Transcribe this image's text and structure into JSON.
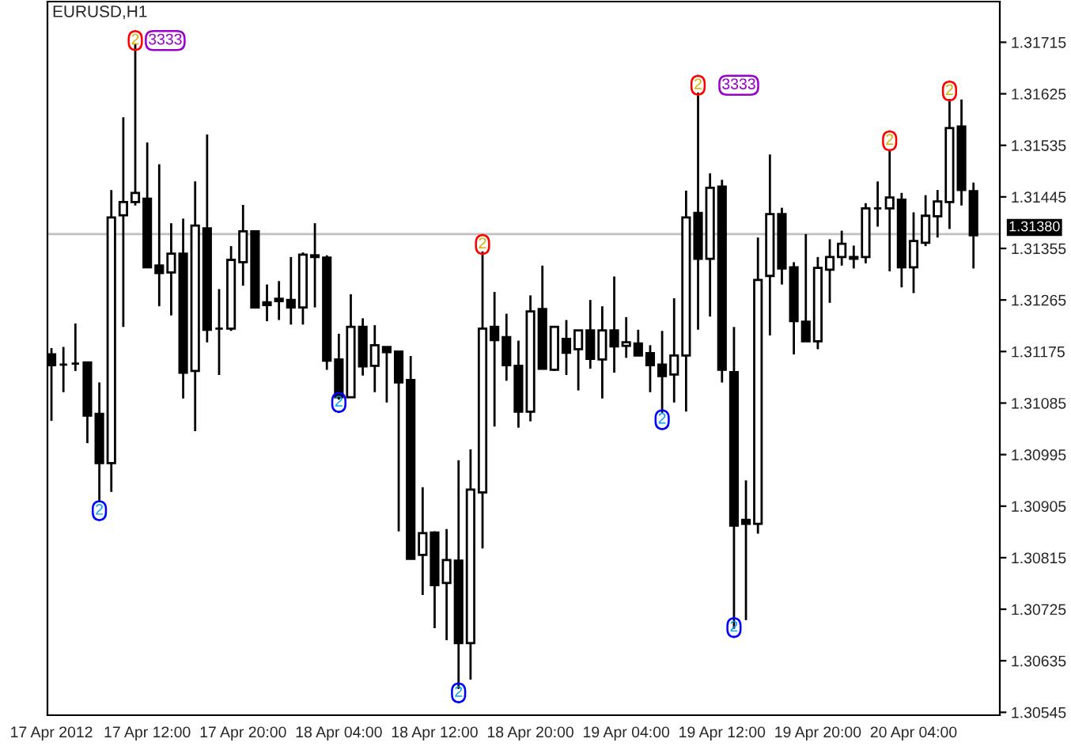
{
  "chart_data": {
    "type": "candlestick",
    "title": "EURUSD,H1",
    "x": [
      "2012-04-17T04:00",
      "2012-04-17T05:00",
      "2012-04-17T06:00",
      "2012-04-17T07:00",
      "2012-04-17T08:00",
      "2012-04-17T09:00",
      "2012-04-17T10:00",
      "2012-04-17T11:00",
      "2012-04-17T12:00",
      "2012-04-17T13:00",
      "2012-04-17T14:00",
      "2012-04-17T15:00",
      "2012-04-17T16:00",
      "2012-04-17T17:00",
      "2012-04-17T18:00",
      "2012-04-17T19:00",
      "2012-04-17T20:00",
      "2012-04-17T21:00",
      "2012-04-17T22:00",
      "2012-04-17T23:00",
      "2012-04-18T00:00",
      "2012-04-18T01:00",
      "2012-04-18T02:00",
      "2012-04-18T03:00",
      "2012-04-18T04:00",
      "2012-04-18T05:00",
      "2012-04-18T06:00",
      "2012-04-18T07:00",
      "2012-04-18T08:00",
      "2012-04-18T09:00",
      "2012-04-18T10:00",
      "2012-04-18T11:00",
      "2012-04-18T12:00",
      "2012-04-18T13:00",
      "2012-04-18T14:00",
      "2012-04-18T15:00",
      "2012-04-18T16:00",
      "2012-04-18T17:00",
      "2012-04-18T18:00",
      "2012-04-18T19:00",
      "2012-04-18T20:00",
      "2012-04-18T21:00",
      "2012-04-18T22:00",
      "2012-04-18T23:00",
      "2012-04-19T00:00",
      "2012-04-19T01:00",
      "2012-04-19T02:00",
      "2012-04-19T03:00",
      "2012-04-19T04:00",
      "2012-04-19T05:00",
      "2012-04-19T06:00",
      "2012-04-19T07:00",
      "2012-04-19T08:00",
      "2012-04-19T09:00",
      "2012-04-19T10:00",
      "2012-04-19T11:00",
      "2012-04-19T12:00",
      "2012-04-19T13:00",
      "2012-04-19T14:00",
      "2012-04-19T15:00",
      "2012-04-19T16:00",
      "2012-04-19T17:00",
      "2012-04-19T18:00",
      "2012-04-19T19:00",
      "2012-04-19T20:00",
      "2012-04-19T21:00",
      "2012-04-19T22:00",
      "2012-04-19T23:00",
      "2012-04-20T00:00",
      "2012-04-20T01:00",
      "2012-04-20T02:00",
      "2012-04-20T03:00",
      "2012-04-20T04:00",
      "2012-04-20T05:00",
      "2012-04-20T06:00",
      "2012-04-20T07:00",
      "2012-04-20T08:00",
      "2012-04-20T09:00"
    ],
    "ohlc": [
      [
        1.3117,
        1.31181,
        1.31054,
        1.31151
      ],
      [
        1.31152,
        1.31183,
        1.31104,
        1.31152
      ],
      [
        1.31154,
        1.31224,
        1.31141,
        1.31154
      ],
      [
        1.31156,
        1.31156,
        1.31015,
        1.31063
      ],
      [
        1.31066,
        1.31121,
        1.30913,
        1.3098
      ],
      [
        1.3098,
        1.31457,
        1.3093,
        1.31409
      ],
      [
        1.31413,
        1.31584,
        1.31218,
        1.31436
      ],
      [
        1.31436,
        1.31713,
        1.3143,
        1.31452
      ],
      [
        1.31442,
        1.3154,
        1.31322,
        1.31322
      ],
      [
        1.31325,
        1.31502,
        1.31254,
        1.31312
      ],
      [
        1.31313,
        1.31399,
        1.31238,
        1.31346
      ],
      [
        1.31346,
        1.31407,
        1.31093,
        1.31138
      ],
      [
        1.31141,
        1.31472,
        1.31036,
        1.31395
      ],
      [
        1.3139,
        1.31554,
        1.31191,
        1.31213
      ],
      [
        1.31215,
        1.31284,
        1.31134,
        1.31215
      ],
      [
        1.31215,
        1.31359,
        1.31211,
        1.31335
      ],
      [
        1.31331,
        1.31431,
        1.3129,
        1.31385
      ],
      [
        1.31385,
        1.31385,
        1.31252,
        1.31252
      ],
      [
        1.31261,
        1.31292,
        1.31228,
        1.31256
      ],
      [
        1.31267,
        1.31298,
        1.3123,
        1.31263
      ],
      [
        1.31265,
        1.3134,
        1.31222,
        1.31252
      ],
      [
        1.31252,
        1.31348,
        1.31222,
        1.31344
      ],
      [
        1.31343,
        1.31399,
        1.31252,
        1.3134
      ],
      [
        1.31339,
        1.31343,
        1.31143,
        1.31159
      ],
      [
        1.31161,
        1.31206,
        1.31091,
        1.31095
      ],
      [
        1.31095,
        1.31275,
        1.31095,
        1.31218
      ],
      [
        1.31218,
        1.31233,
        1.31133,
        1.31149
      ],
      [
        1.3115,
        1.31221,
        1.31104,
        1.31186
      ],
      [
        1.31183,
        1.31183,
        1.31086,
        1.31174
      ],
      [
        1.31175,
        1.31175,
        1.30861,
        1.31121
      ],
      [
        1.31125,
        1.31167,
        1.30813,
        1.30813
      ],
      [
        1.3082,
        1.30938,
        1.3075,
        1.30858
      ],
      [
        1.30859,
        1.30861,
        1.30692,
        1.30767
      ],
      [
        1.30771,
        1.30865,
        1.30671,
        1.30811
      ],
      [
        1.3081,
        1.30985,
        1.30586,
        1.30666
      ],
      [
        1.30666,
        1.31004,
        1.30602,
        1.30934
      ],
      [
        1.30929,
        1.3135,
        1.30831,
        1.31215
      ],
      [
        1.31218,
        1.31279,
        1.31044,
        1.31195
      ],
      [
        1.312,
        1.31241,
        1.31124,
        1.31151
      ],
      [
        1.3115,
        1.31194,
        1.31042,
        1.3107
      ],
      [
        1.3107,
        1.31273,
        1.31053,
        1.31245
      ],
      [
        1.31249,
        1.31325,
        1.31145,
        1.31145
      ],
      [
        1.31143,
        1.31218,
        1.31141,
        1.31218
      ],
      [
        1.31197,
        1.3123,
        1.31134,
        1.31173
      ],
      [
        1.31179,
        1.31212,
        1.31107,
        1.31212
      ],
      [
        1.31212,
        1.31265,
        1.31145,
        1.31162
      ],
      [
        1.31161,
        1.31254,
        1.31093,
        1.31212
      ],
      [
        1.31212,
        1.31306,
        1.31138,
        1.31184
      ],
      [
        1.31185,
        1.31235,
        1.31164,
        1.31191
      ],
      [
        1.31189,
        1.31213,
        1.31168,
        1.31168
      ],
      [
        1.31172,
        1.31186,
        1.31104,
        1.31151
      ],
      [
        1.31152,
        1.31211,
        1.31068,
        1.31132
      ],
      [
        1.31135,
        1.31268,
        1.31086,
        1.31168
      ],
      [
        1.31168,
        1.31456,
        1.3107,
        1.31409
      ],
      [
        1.31417,
        1.31627,
        1.31213,
        1.31337
      ],
      [
        1.31337,
        1.31486,
        1.31236,
        1.31461
      ],
      [
        1.31463,
        1.31475,
        1.31121,
        1.31143
      ],
      [
        1.31139,
        1.31218,
        1.30691,
        1.30871
      ],
      [
        1.30881,
        1.3095,
        1.30706,
        1.30874
      ],
      [
        1.30874,
        1.31374,
        1.30857,
        1.313
      ],
      [
        1.31307,
        1.31519,
        1.31203,
        1.31415
      ],
      [
        1.31415,
        1.31426,
        1.31292,
        1.3132
      ],
      [
        1.31322,
        1.31331,
        1.3117,
        1.31228
      ],
      [
        1.31227,
        1.3138,
        1.31193,
        1.31193
      ],
      [
        1.31193,
        1.3134,
        1.31179,
        1.31321
      ],
      [
        1.31318,
        1.31371,
        1.3126,
        1.3134
      ],
      [
        1.3134,
        1.31386,
        1.31325,
        1.31363
      ],
      [
        1.3134,
        1.3136,
        1.3132,
        1.31337
      ],
      [
        1.3134,
        1.31434,
        1.31329,
        1.31425
      ],
      [
        1.31425,
        1.31472,
        1.31393,
        1.31425
      ],
      [
        1.31425,
        1.31527,
        1.31315,
        1.31444
      ],
      [
        1.3144,
        1.31452,
        1.31287,
        1.31322
      ],
      [
        1.31322,
        1.31418,
        1.31277,
        1.31368
      ],
      [
        1.31365,
        1.31448,
        1.31359,
        1.31412
      ],
      [
        1.31411,
        1.31457,
        1.31374,
        1.31437
      ],
      [
        1.31436,
        1.31616,
        1.31389,
        1.31565
      ],
      [
        1.31568,
        1.31615,
        1.3143,
        1.31457
      ],
      [
        1.31455,
        1.3147,
        1.3132,
        1.31378
      ]
    ],
    "xlim": [
      "2012-04-17T03:40",
      "2012-04-20T11:12"
    ],
    "xticks": [
      {
        "value": "2012-04-17T04:00",
        "label": "17 Apr 2012"
      },
      {
        "value": "2012-04-17T12:00",
        "label": "17 Apr 12:00"
      },
      {
        "value": "2012-04-17T20:00",
        "label": "17 Apr 20:00"
      },
      {
        "value": "2012-04-18T04:00",
        "label": "18 Apr 04:00"
      },
      {
        "value": "2012-04-18T12:00",
        "label": "18 Apr 12:00"
      },
      {
        "value": "2012-04-18T20:00",
        "label": "18 Apr 20:00"
      },
      {
        "value": "2012-04-19T04:00",
        "label": "19 Apr 04:00"
      },
      {
        "value": "2012-04-19T12:00",
        "label": "19 Apr 12:00"
      },
      {
        "value": "2012-04-19T20:00",
        "label": "19 Apr 20:00"
      },
      {
        "value": "2012-04-20T04:00",
        "label": "20 Apr 04:00"
      }
    ],
    "ylim": [
      1.3054,
      1.31786
    ],
    "yticks": [
      {
        "value": 1.31715,
        "label": "1.31715"
      },
      {
        "value": 1.31625,
        "label": "1.31625"
      },
      {
        "value": 1.31535,
        "label": "1.31535"
      },
      {
        "value": 1.31445,
        "label": "1.31445"
      },
      {
        "value": 1.31355,
        "label": "1.31355"
      },
      {
        "value": 1.31265,
        "label": "1.31265"
      },
      {
        "value": 1.31175,
        "label": "1.31175"
      },
      {
        "value": 1.31085,
        "label": "1.31085"
      },
      {
        "value": 1.30995,
        "label": "1.30995"
      },
      {
        "value": 1.30905,
        "label": "1.30905"
      },
      {
        "value": 1.30815,
        "label": "1.30815"
      },
      {
        "value": 1.30725,
        "label": "1.30725"
      },
      {
        "value": 1.30635,
        "label": "1.30635"
      },
      {
        "value": 1.30545,
        "label": "1.30545"
      }
    ],
    "ref_lines": [
      {
        "axis": "y",
        "value": 1.3138,
        "label": "1.31380",
        "color": "#c0c0c0"
      }
    ],
    "annotations": [
      {
        "text": "2",
        "x": "2012-04-17T11:00",
        "y": 1.31718
      },
      {
        "text": "2",
        "x": "2012-04-18T16:00",
        "y": 1.31362
      },
      {
        "text": "2",
        "x": "2012-04-19T10:00",
        "y": 1.3164
      },
      {
        "text": "2",
        "x": "2012-04-20T02:00",
        "y": 1.31543
      },
      {
        "text": "2",
        "x": "2012-04-20T07:00",
        "y": 1.3163
      },
      {
        "text": "2",
        "x": "2012-04-17T08:00",
        "y": 1.30897
      },
      {
        "text": "2",
        "x": "2012-04-18T04:00",
        "y": 1.31086
      },
      {
        "text": "2",
        "x": "2012-04-18T14:00",
        "y": 1.30579
      },
      {
        "text": "2",
        "x": "2012-04-19T07:00",
        "y": 1.31056
      },
      {
        "text": "2",
        "x": "2012-04-19T13:00",
        "y": 1.30693
      },
      {
        "text": "3333",
        "x": "2012-04-17T13:30",
        "y": 1.31718
      },
      {
        "text": "3333",
        "x": "2012-04-19T13:24",
        "y": 1.3164
      }
    ]
  }
}
